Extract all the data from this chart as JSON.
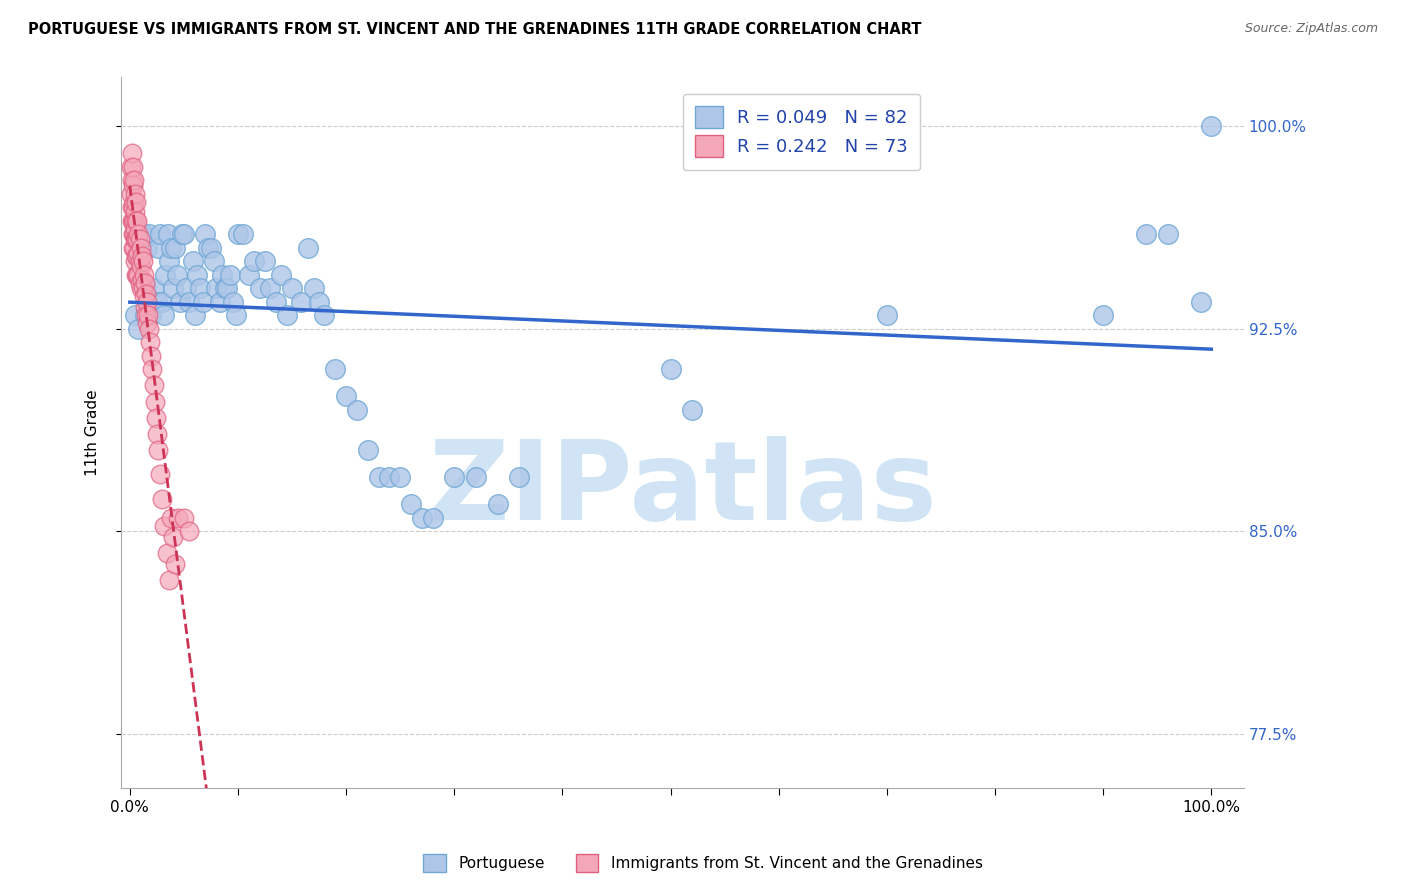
{
  "title": "PORTUGUESE VS IMMIGRANTS FROM ST. VINCENT AND THE GRENADINES 11TH GRADE CORRELATION CHART",
  "source": "Source: ZipAtlas.com",
  "ylabel": "11th Grade",
  "y_ticks": [
    0.775,
    0.85,
    0.925,
    1.0
  ],
  "y_tick_labels": [
    "77.5%",
    "85.0%",
    "92.5%",
    "100.0%"
  ],
  "legend_R1": "0.049",
  "legend_N1": "82",
  "legend_R2": "0.242",
  "legend_N2": "73",
  "blue_color": "#aec6e8",
  "pink_color": "#f4a7b9",
  "blue_edge": "#6fa8d6",
  "pink_edge": "#e06080",
  "trend_blue": "#3366cc",
  "trend_pink": "#cc3355",
  "watermark_color": "#d0e4f5",
  "blue_scatter_x": [
    0.005,
    0.008,
    0.01,
    0.012,
    0.014,
    0.015,
    0.016,
    0.018,
    0.02,
    0.022,
    0.025,
    0.026,
    0.028,
    0.03,
    0.032,
    0.033,
    0.035,
    0.036,
    0.038,
    0.04,
    0.042,
    0.044,
    0.046,
    0.048,
    0.05,
    0.052,
    0.055,
    0.058,
    0.06,
    0.062,
    0.065,
    0.068,
    0.07,
    0.072,
    0.075,
    0.078,
    0.08,
    0.083,
    0.085,
    0.088,
    0.09,
    0.093,
    0.095,
    0.098,
    0.1,
    0.105,
    0.11,
    0.115,
    0.12,
    0.125,
    0.13,
    0.135,
    0.14,
    0.145,
    0.15,
    0.158,
    0.165,
    0.17,
    0.175,
    0.18,
    0.19,
    0.2,
    0.21,
    0.22,
    0.23,
    0.24,
    0.25,
    0.26,
    0.27,
    0.28,
    0.3,
    0.32,
    0.34,
    0.36,
    0.5,
    0.52,
    0.7,
    0.9,
    0.94,
    0.96,
    0.99,
    1.0
  ],
  "blue_scatter_y": [
    0.93,
    0.925,
    0.96,
    0.96,
    0.93,
    0.94,
    0.955,
    0.96,
    0.93,
    0.94,
    0.935,
    0.955,
    0.96,
    0.935,
    0.93,
    0.945,
    0.96,
    0.95,
    0.955,
    0.94,
    0.955,
    0.945,
    0.935,
    0.96,
    0.96,
    0.94,
    0.935,
    0.95,
    0.93,
    0.945,
    0.94,
    0.935,
    0.96,
    0.955,
    0.955,
    0.95,
    0.94,
    0.935,
    0.945,
    0.94,
    0.94,
    0.945,
    0.935,
    0.93,
    0.96,
    0.96,
    0.945,
    0.95,
    0.94,
    0.95,
    0.94,
    0.935,
    0.945,
    0.93,
    0.94,
    0.935,
    0.955,
    0.94,
    0.935,
    0.93,
    0.91,
    0.9,
    0.895,
    0.88,
    0.87,
    0.87,
    0.87,
    0.86,
    0.855,
    0.855,
    0.87,
    0.87,
    0.86,
    0.87,
    0.91,
    0.895,
    0.93,
    0.93,
    0.96,
    0.96,
    0.935,
    1.0
  ],
  "pink_scatter_x": [
    0.001,
    0.001,
    0.002,
    0.002,
    0.002,
    0.002,
    0.003,
    0.003,
    0.003,
    0.003,
    0.003,
    0.003,
    0.004,
    0.004,
    0.004,
    0.004,
    0.004,
    0.005,
    0.005,
    0.005,
    0.005,
    0.005,
    0.006,
    0.006,
    0.006,
    0.006,
    0.006,
    0.007,
    0.007,
    0.007,
    0.007,
    0.008,
    0.008,
    0.008,
    0.009,
    0.009,
    0.009,
    0.01,
    0.01,
    0.01,
    0.011,
    0.011,
    0.012,
    0.012,
    0.013,
    0.013,
    0.014,
    0.014,
    0.015,
    0.015,
    0.016,
    0.016,
    0.017,
    0.018,
    0.019,
    0.02,
    0.021,
    0.022,
    0.023,
    0.024,
    0.025,
    0.026,
    0.028,
    0.03,
    0.032,
    0.034,
    0.036,
    0.038,
    0.04,
    0.042,
    0.045,
    0.05,
    0.055
  ],
  "pink_scatter_y": [
    0.985,
    0.975,
    0.99,
    0.98,
    0.97,
    0.965,
    0.985,
    0.978,
    0.97,
    0.965,
    0.96,
    0.955,
    0.98,
    0.972,
    0.965,
    0.96,
    0.955,
    0.975,
    0.968,
    0.962,
    0.958,
    0.95,
    0.972,
    0.965,
    0.958,
    0.952,
    0.945,
    0.965,
    0.958,
    0.952,
    0.945,
    0.96,
    0.953,
    0.945,
    0.958,
    0.95,
    0.942,
    0.955,
    0.948,
    0.94,
    0.952,
    0.943,
    0.95,
    0.94,
    0.945,
    0.937,
    0.942,
    0.933,
    0.938,
    0.93,
    0.935,
    0.927,
    0.93,
    0.925,
    0.92,
    0.915,
    0.91,
    0.904,
    0.898,
    0.892,
    0.886,
    0.88,
    0.871,
    0.862,
    0.852,
    0.842,
    0.832,
    0.855,
    0.848,
    0.838,
    0.855,
    0.855,
    0.85
  ]
}
